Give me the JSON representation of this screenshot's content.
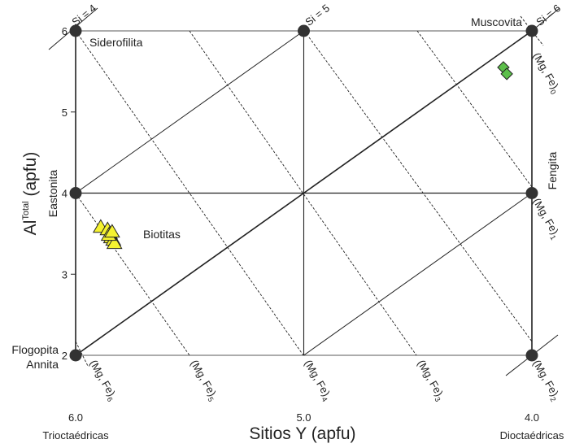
{
  "chart_data": {
    "type": "scatter",
    "title": "",
    "xlabel": "Sitios Y (apfu)",
    "ylabel": {
      "main": "Al",
      "sup": "Total",
      "rest": " (apfu)"
    },
    "xlim": [
      6.0,
      4.0
    ],
    "ylim": [
      2,
      6
    ],
    "x_ticks": [
      "6.0",
      "5.0",
      "4.0"
    ],
    "y_ticks": [
      "2",
      "3",
      "4",
      "5",
      "6"
    ],
    "x_extremes": {
      "left": "Trioctaédricas",
      "right": "Dioctaédricas"
    },
    "end_members": [
      {
        "label": "Siderofilita",
        "x": 6.0,
        "y": 6
      },
      {
        "label": "Muscovita",
        "x": 4.0,
        "y": 6
      },
      {
        "label": "Eastonita",
        "x": 6.0,
        "y": 4
      },
      {
        "label": "Fengita",
        "x": 4.0,
        "y": 4
      },
      {
        "label": "Flogopita",
        "label2": "Annita",
        "x": 6.0,
        "y": 2
      },
      {
        "label": "",
        "x": 5.0,
        "y": 6
      },
      {
        "label": "",
        "x": 4.0,
        "y": 2
      }
    ],
    "si_lines": [
      {
        "label": "Si = 4",
        "pos": "top-left"
      },
      {
        "label": "Si = 5",
        "pos": "top-mid"
      },
      {
        "label": "Si = 6",
        "pos": "top-right"
      }
    ],
    "mgfe_lines": [
      {
        "base": "(Mg, Fe)",
        "sub": "0"
      },
      {
        "base": "(Mg, Fe)",
        "sub": "1"
      },
      {
        "base": "(Mg, Fe)",
        "sub": "2"
      },
      {
        "base": "(Mg, Fe)",
        "sub": "3"
      },
      {
        "base": "(Mg, Fe)",
        "sub": "4"
      },
      {
        "base": "(Mg, Fe)",
        "sub": "5"
      },
      {
        "base": "(Mg, Fe)",
        "sub": "6"
      }
    ],
    "series": [
      {
        "name": "Biotitas",
        "marker": "triangle",
        "color": "#f5f230",
        "points": [
          [
            5.89,
            3.58
          ],
          [
            5.86,
            3.55
          ],
          [
            5.85,
            3.5
          ],
          [
            5.845,
            3.45
          ],
          [
            5.835,
            3.42
          ],
          [
            5.83,
            3.38
          ],
          [
            5.855,
            3.48
          ],
          [
            5.84,
            3.52
          ]
        ]
      },
      {
        "name": "",
        "marker": "diamond",
        "color": "#5cbf4a",
        "points": [
          [
            4.125,
            5.55
          ],
          [
            4.11,
            5.47
          ]
        ]
      }
    ]
  }
}
